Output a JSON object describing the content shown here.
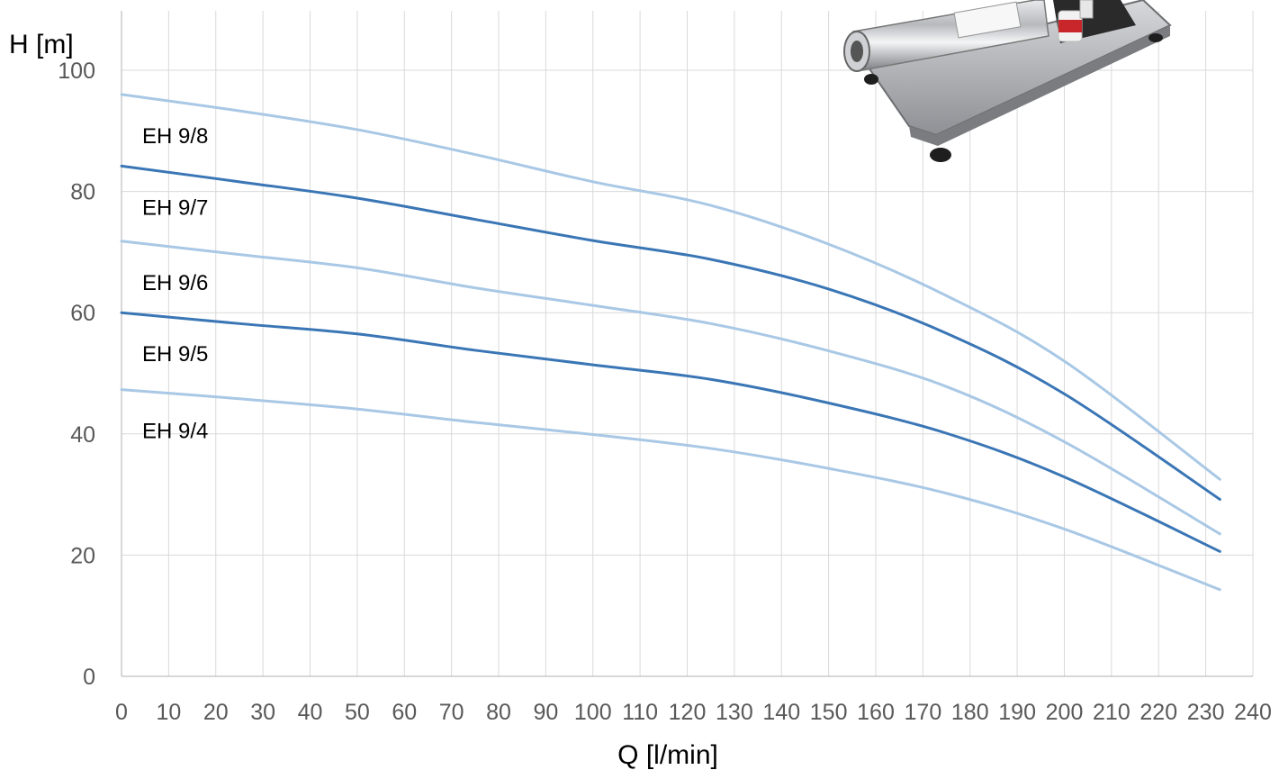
{
  "chart_data": {
    "type": "line",
    "xlabel": "Q [l/min]",
    "ylabel": "H [m]",
    "xlim": [
      0,
      240
    ],
    "ylim": [
      0,
      100
    ],
    "x_ticks": [
      0,
      10,
      20,
      30,
      40,
      50,
      60,
      70,
      80,
      90,
      100,
      110,
      120,
      130,
      140,
      150,
      160,
      170,
      180,
      190,
      200,
      210,
      220,
      230,
      240
    ],
    "y_ticks": [
      0,
      20,
      40,
      60,
      80,
      100
    ],
    "grid": true,
    "legend": "labels on curves",
    "series": [
      {
        "name": "EH 9/8",
        "color": "#a9c8e5",
        "x": [
          0,
          25,
          50,
          75,
          100,
          125,
          150,
          175,
          200,
          233
        ],
        "y": [
          96,
          93.3,
          90.2,
          86.1,
          81.6,
          77.7,
          71.3,
          62.8,
          52.0,
          32.5
        ]
      },
      {
        "name": "EH 9/7",
        "color": "#3a76b5",
        "x": [
          0,
          25,
          50,
          75,
          100,
          125,
          150,
          175,
          200,
          233
        ],
        "y": [
          84.2,
          81.6,
          78.9,
          75.4,
          71.9,
          68.8,
          63.9,
          56.6,
          46.6,
          29.2
        ]
      },
      {
        "name": "EH 9/6",
        "color": "#a9c8e5",
        "x": [
          0,
          25,
          50,
          75,
          100,
          125,
          150,
          175,
          200,
          233
        ],
        "y": [
          71.8,
          69.6,
          67.4,
          64.1,
          61.2,
          58.2,
          53.7,
          47.8,
          38.7,
          23.5
        ]
      },
      {
        "name": "EH 9/5",
        "color": "#3a76b5",
        "x": [
          0,
          25,
          50,
          75,
          100,
          125,
          150,
          175,
          200,
          233
        ],
        "y": [
          60.0,
          58.2,
          56.5,
          53.8,
          51.4,
          49.0,
          45.1,
          40.1,
          32.9,
          20.6
        ]
      },
      {
        "name": "EH 9/4",
        "color": "#a9c8e5",
        "x": [
          0,
          25,
          50,
          75,
          100,
          125,
          150,
          175,
          200,
          233
        ],
        "y": [
          47.3,
          45.8,
          44.1,
          41.9,
          39.9,
          37.6,
          34.3,
          30.2,
          24.3,
          14.3
        ]
      }
    ]
  },
  "label_positions": {}
}
